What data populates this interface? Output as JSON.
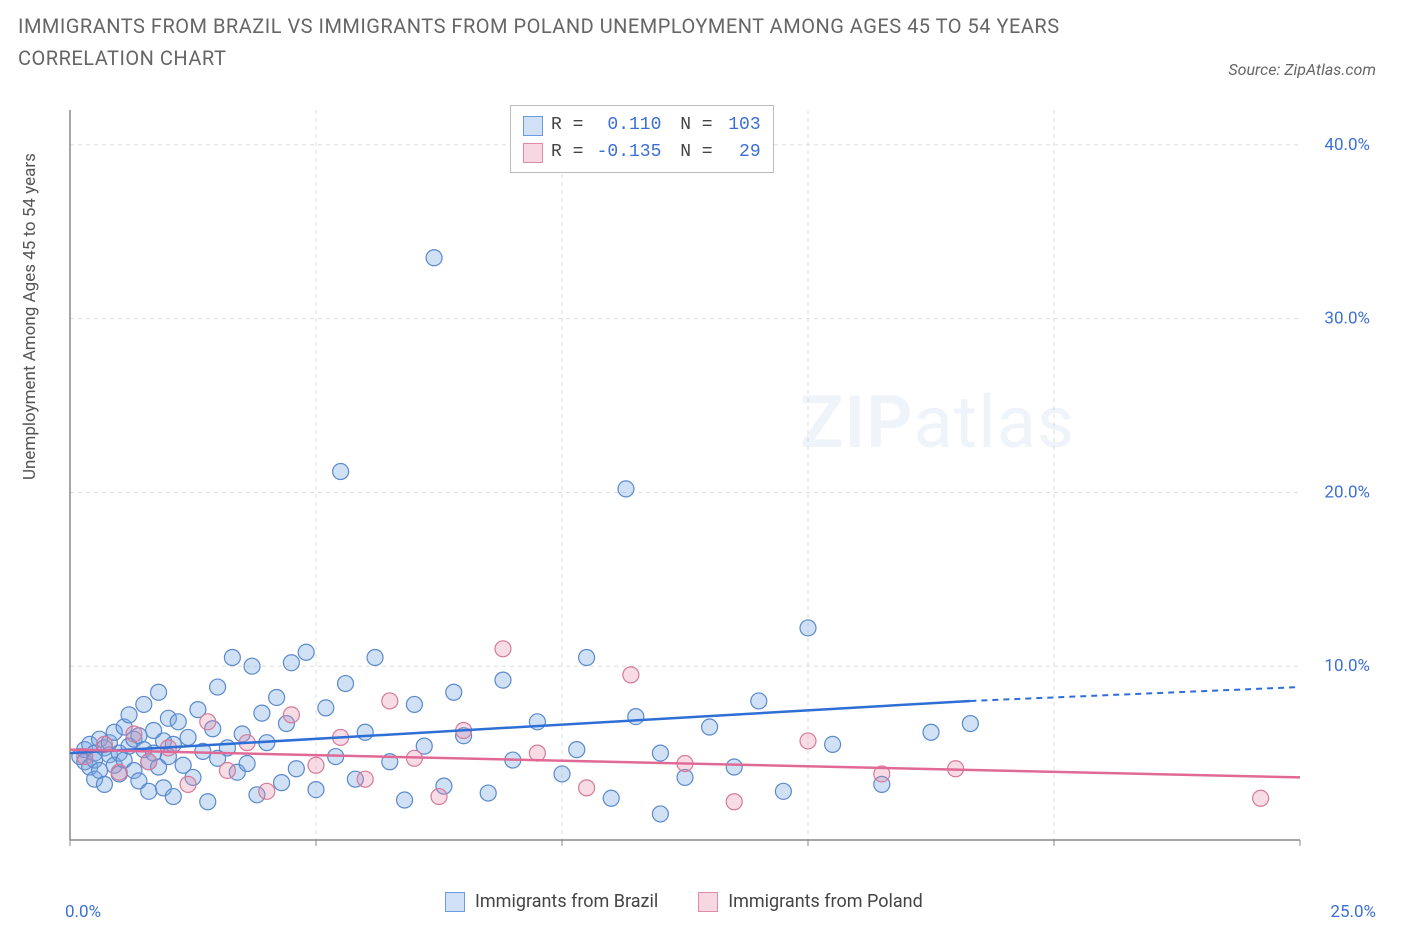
{
  "title": "IMMIGRANTS FROM BRAZIL VS IMMIGRANTS FROM POLAND UNEMPLOYMENT AMONG AGES 45 TO 54 YEARS CORRELATION CHART",
  "source": "Source: ZipAtlas.com",
  "y_axis_label": "Unemployment Among Ages 45 to 54 years",
  "watermark_zip": "ZIP",
  "watermark_atlas": "atlas",
  "chart": {
    "type": "scatter",
    "xlim": [
      0,
      25
    ],
    "ylim": [
      0,
      42
    ],
    "x_min_label": "0.0%",
    "x_max_label": "25.0%",
    "y_ticks": [
      10,
      20,
      30,
      40
    ],
    "y_tick_labels": [
      "10.0%",
      "20.0%",
      "30.0%",
      "40.0%"
    ],
    "grid_color": "#dddddd",
    "axis_color": "#888888",
    "background": "#ffffff",
    "marker_radius": 8,
    "marker_stroke_width": 1.2,
    "series": [
      {
        "name": "Immigrants from Brazil",
        "R": "0.110",
        "N": "103",
        "swatch_fill": "#cfe0f7",
        "swatch_stroke": "#6a9ae0",
        "marker_fill": "rgba(120,165,225,0.35)",
        "marker_stroke": "#5a8acc",
        "line_color": "#2e6fd6",
        "line": {
          "x1": 0,
          "y1": 5.0,
          "x2": 18.3,
          "y2": 8.0,
          "x2_dash": 25,
          "y2_dash": 8.8
        },
        "points": [
          [
            0.2,
            4.8
          ],
          [
            0.3,
            5.2
          ],
          [
            0.3,
            4.5
          ],
          [
            0.4,
            5.5
          ],
          [
            0.4,
            4.2
          ],
          [
            0.5,
            5.0
          ],
          [
            0.5,
            4.6
          ],
          [
            0.5,
            3.5
          ],
          [
            0.6,
            5.8
          ],
          [
            0.6,
            4.0
          ],
          [
            0.7,
            5.3
          ],
          [
            0.7,
            3.2
          ],
          [
            0.8,
            4.9
          ],
          [
            0.8,
            5.6
          ],
          [
            0.9,
            4.3
          ],
          [
            0.9,
            6.2
          ],
          [
            1.0,
            5.0
          ],
          [
            1.0,
            3.8
          ],
          [
            1.1,
            6.5
          ],
          [
            1.1,
            4.6
          ],
          [
            1.2,
            5.4
          ],
          [
            1.2,
            7.2
          ],
          [
            1.3,
            4.0
          ],
          [
            1.3,
            5.8
          ],
          [
            1.4,
            3.4
          ],
          [
            1.4,
            6.0
          ],
          [
            1.5,
            5.2
          ],
          [
            1.5,
            7.8
          ],
          [
            1.6,
            4.5
          ],
          [
            1.6,
            2.8
          ],
          [
            1.7,
            6.3
          ],
          [
            1.7,
            5.0
          ],
          [
            1.8,
            8.5
          ],
          [
            1.8,
            4.2
          ],
          [
            1.9,
            3.0
          ],
          [
            1.9,
            5.7
          ],
          [
            2.0,
            4.8
          ],
          [
            2.0,
            7.0
          ],
          [
            2.1,
            5.5
          ],
          [
            2.1,
            2.5
          ],
          [
            2.2,
            6.8
          ],
          [
            2.3,
            4.3
          ],
          [
            2.4,
            5.9
          ],
          [
            2.5,
            3.6
          ],
          [
            2.6,
            7.5
          ],
          [
            2.7,
            5.1
          ],
          [
            2.8,
            2.2
          ],
          [
            2.9,
            6.4
          ],
          [
            3.0,
            4.7
          ],
          [
            3.0,
            8.8
          ],
          [
            3.2,
            5.3
          ],
          [
            3.3,
            10.5
          ],
          [
            3.4,
            3.9
          ],
          [
            3.5,
            6.1
          ],
          [
            3.6,
            4.4
          ],
          [
            3.7,
            10.0
          ],
          [
            3.8,
            2.6
          ],
          [
            3.9,
            7.3
          ],
          [
            4.0,
            5.6
          ],
          [
            4.2,
            8.2
          ],
          [
            4.3,
            3.3
          ],
          [
            4.4,
            6.7
          ],
          [
            4.5,
            10.2
          ],
          [
            4.6,
            4.1
          ],
          [
            4.8,
            10.8
          ],
          [
            5.0,
            2.9
          ],
          [
            5.2,
            7.6
          ],
          [
            5.4,
            4.8
          ],
          [
            5.5,
            21.2
          ],
          [
            5.6,
            9.0
          ],
          [
            5.8,
            3.5
          ],
          [
            6.0,
            6.2
          ],
          [
            6.2,
            10.5
          ],
          [
            6.5,
            4.5
          ],
          [
            6.8,
            2.3
          ],
          [
            7.0,
            7.8
          ],
          [
            7.2,
            5.4
          ],
          [
            7.4,
            33.5
          ],
          [
            7.6,
            3.1
          ],
          [
            7.8,
            8.5
          ],
          [
            8.0,
            6.0
          ],
          [
            8.5,
            2.7
          ],
          [
            8.8,
            9.2
          ],
          [
            9.0,
            4.6
          ],
          [
            9.5,
            6.8
          ],
          [
            10.0,
            3.8
          ],
          [
            10.3,
            5.2
          ],
          [
            10.5,
            10.5
          ],
          [
            11.0,
            2.4
          ],
          [
            11.3,
            20.2
          ],
          [
            11.5,
            7.1
          ],
          [
            12.0,
            5.0
          ],
          [
            12.0,
            1.5
          ],
          [
            12.5,
            3.6
          ],
          [
            13.0,
            6.5
          ],
          [
            13.5,
            4.2
          ],
          [
            14.0,
            8.0
          ],
          [
            14.5,
            2.8
          ],
          [
            15.0,
            12.2
          ],
          [
            15.5,
            5.5
          ],
          [
            16.5,
            3.2
          ],
          [
            17.5,
            6.2
          ],
          [
            18.3,
            6.7
          ]
        ]
      },
      {
        "name": "Immigrants from Poland",
        "R": "-0.135",
        "N": "29",
        "swatch_fill": "#f7d8e2",
        "swatch_stroke": "#e08ca8",
        "marker_fill": "rgba(230,140,170,0.30)",
        "marker_stroke": "#d67a9a",
        "line_color": "#e06a95",
        "line": {
          "x1": 0,
          "y1": 5.2,
          "x2": 25,
          "y2": 3.6
        },
        "points": [
          [
            0.3,
            4.8
          ],
          [
            0.7,
            5.5
          ],
          [
            1.0,
            3.9
          ],
          [
            1.3,
            6.1
          ],
          [
            1.6,
            4.5
          ],
          [
            2.0,
            5.3
          ],
          [
            2.4,
            3.2
          ],
          [
            2.8,
            6.8
          ],
          [
            3.2,
            4.0
          ],
          [
            3.6,
            5.6
          ],
          [
            4.0,
            2.8
          ],
          [
            4.5,
            7.2
          ],
          [
            5.0,
            4.3
          ],
          [
            5.5,
            5.9
          ],
          [
            6.0,
            3.5
          ],
          [
            6.5,
            8.0
          ],
          [
            7.0,
            4.7
          ],
          [
            7.5,
            2.5
          ],
          [
            8.0,
            6.3
          ],
          [
            8.8,
            11.0
          ],
          [
            9.5,
            5.0
          ],
          [
            10.5,
            3.0
          ],
          [
            11.4,
            9.5
          ],
          [
            12.5,
            4.4
          ],
          [
            13.5,
            2.2
          ],
          [
            15.0,
            5.7
          ],
          [
            16.5,
            3.8
          ],
          [
            18.0,
            4.1
          ],
          [
            24.2,
            2.4
          ]
        ]
      }
    ]
  },
  "legend_bottom": [
    {
      "label": "Immigrants from Brazil",
      "fill": "#cfe0f7",
      "stroke": "#6a9ae0"
    },
    {
      "label": "Immigrants from Poland",
      "fill": "#f7d8e2",
      "stroke": "#e08ca8"
    }
  ]
}
